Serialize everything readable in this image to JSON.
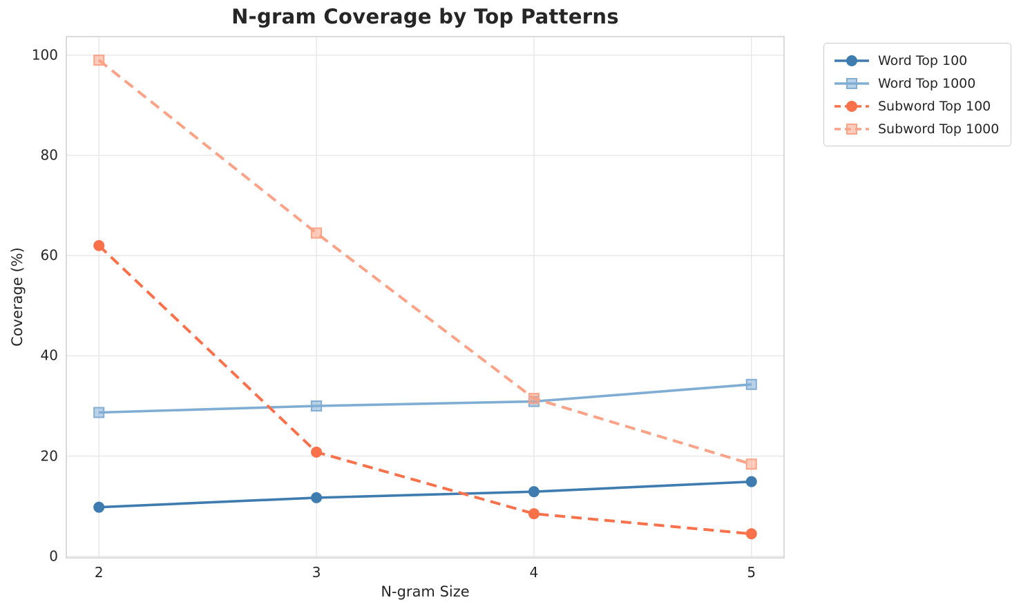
{
  "chart_data": {
    "type": "line",
    "title": "N-gram Coverage by Top Patterns",
    "xlabel": "N-gram Size",
    "ylabel": "Coverage (%)",
    "x": [
      2,
      3,
      4,
      5
    ],
    "series": [
      {
        "name": "Word Top 100",
        "color": "#3e7cb0",
        "linestyle": "solid",
        "marker": "circle",
        "values": [
          9.8,
          11.7,
          12.9,
          14.9
        ]
      },
      {
        "name": "Word Top 1000",
        "color": "#7fadd3",
        "linestyle": "solid",
        "marker": "square",
        "values": [
          28.7,
          30.0,
          30.9,
          34.3
        ]
      },
      {
        "name": "Subword Top 100",
        "color": "#f9714a",
        "linestyle": "dashed",
        "marker": "circle",
        "values": [
          62.0,
          20.8,
          8.5,
          4.5
        ]
      },
      {
        "name": "Subword Top 1000",
        "color": "#fba287",
        "linestyle": "dashed",
        "marker": "square",
        "values": [
          99.0,
          64.5,
          31.5,
          18.4
        ]
      }
    ],
    "xticks": [
      2,
      3,
      4,
      5
    ],
    "yticks": [
      0,
      20,
      40,
      60,
      80,
      100
    ],
    "xlim": [
      1.85,
      5.15
    ],
    "ylim": [
      -0.3,
      103.7
    ],
    "grid": true,
    "legend_position": "outside-upper-right",
    "colors": {
      "grid": "#e7e7e7",
      "plot_border": "#d2d2d2",
      "text": "#262626",
      "background": "#ffffff"
    }
  }
}
